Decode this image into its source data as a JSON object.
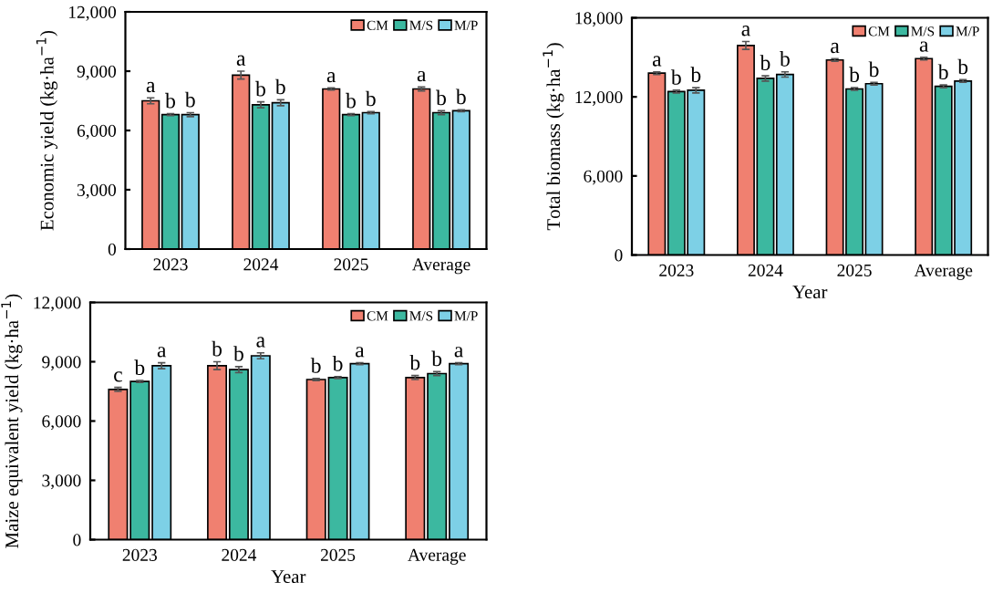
{
  "chart_data": [
    {
      "type": "bar",
      "ylabel": "Economic yield (kg·ha$^{−1}$)",
      "categories": [
        "2023",
        "2024",
        "2025",
        "Average"
      ],
      "ylim": [
        0,
        12000
      ],
      "yticks": [
        {
          "value": 0,
          "label": "0"
        },
        {
          "value": 3000,
          "label": "3,000"
        },
        {
          "value": 6000,
          "label": "6,000"
        },
        {
          "value": 9000,
          "label": "9,000"
        },
        {
          "value": 12000,
          "label": "12,000"
        }
      ],
      "legend": "top right",
      "grid": false,
      "series": [
        {
          "name": "CM",
          "color": "#f08070",
          "values": [
            7500,
            8800,
            8100,
            8100
          ],
          "errors": [
            150,
            200,
            50,
            100
          ],
          "value_labels": [
            "a",
            "a",
            "a",
            "a"
          ]
        },
        {
          "name": "M/S",
          "color": "#3cb8a0",
          "values": [
            6800,
            7300,
            6800,
            6900
          ],
          "errors": [
            50,
            150,
            50,
            100
          ],
          "value_labels": [
            "b",
            "b",
            "b",
            "b"
          ]
        },
        {
          "name": "M/P",
          "color": "#7dd0e6",
          "values": [
            6800,
            7400,
            6900,
            7000
          ],
          "errors": [
            100,
            150,
            50,
            50
          ],
          "value_labels": [
            "b",
            "b",
            "b",
            "b"
          ]
        }
      ]
    },
    {
      "type": "bar",
      "xlabel": "Year",
      "ylabel": "Total biomass (kg·ha$^{−1}$)",
      "categories": [
        "2023",
        "2024",
        "2025",
        "Average"
      ],
      "ylim": [
        0,
        18000
      ],
      "yticks": [
        {
          "value": 0,
          "label": "0"
        },
        {
          "value": 6000,
          "label": "6,000"
        },
        {
          "value": 12000,
          "label": "12,000"
        },
        {
          "value": 18000,
          "label": "18,000"
        }
      ],
      "legend": "top right",
      "grid": false,
      "series": [
        {
          "name": "CM",
          "color": "#f08070",
          "values": [
            13800,
            15900,
            14800,
            14900
          ],
          "errors": [
            100,
            300,
            100,
            100
          ],
          "value_labels": [
            "a",
            "a",
            "a",
            "a"
          ]
        },
        {
          "name": "M/S",
          "color": "#3cb8a0",
          "values": [
            12400,
            13400,
            12600,
            12800
          ],
          "errors": [
            100,
            200,
            100,
            100
          ],
          "value_labels": [
            "b",
            "b",
            "b",
            "b"
          ]
        },
        {
          "name": "M/P",
          "color": "#7dd0e6",
          "values": [
            12500,
            13700,
            13000,
            13200
          ],
          "errors": [
            200,
            200,
            100,
            100
          ],
          "value_labels": [
            "b",
            "b",
            "b",
            "b"
          ]
        }
      ]
    },
    {
      "type": "bar",
      "xlabel": "Year",
      "ylabel": "Maize equivalent yield (kg·ha$^{−1}$)",
      "categories": [
        "2023",
        "2024",
        "2025",
        "Average"
      ],
      "ylim": [
        0,
        12000
      ],
      "yticks": [
        {
          "value": 0,
          "label": "0"
        },
        {
          "value": 3000,
          "label": "3,000"
        },
        {
          "value": 6000,
          "label": "6,000"
        },
        {
          "value": 9000,
          "label": "9,000"
        },
        {
          "value": 12000,
          "label": "12,000"
        }
      ],
      "legend": "top right",
      "grid": false,
      "series": [
        {
          "name": "CM",
          "color": "#f08070",
          "values": [
            7600,
            8800,
            8100,
            8200
          ],
          "errors": [
            100,
            200,
            50,
            100
          ],
          "value_labels": [
            "c",
            "b",
            "b",
            "b"
          ]
        },
        {
          "name": "M/S",
          "color": "#3cb8a0",
          "values": [
            8000,
            8600,
            8200,
            8400
          ],
          "errors": [
            50,
            150,
            50,
            100
          ],
          "value_labels": [
            "b",
            "b",
            "b",
            "b"
          ]
        },
        {
          "name": "M/P",
          "color": "#7dd0e6",
          "values": [
            8800,
            9300,
            8900,
            8900
          ],
          "errors": [
            150,
            150,
            50,
            50
          ],
          "value_labels": [
            "a",
            "a",
            "a",
            "a"
          ]
        }
      ]
    }
  ]
}
